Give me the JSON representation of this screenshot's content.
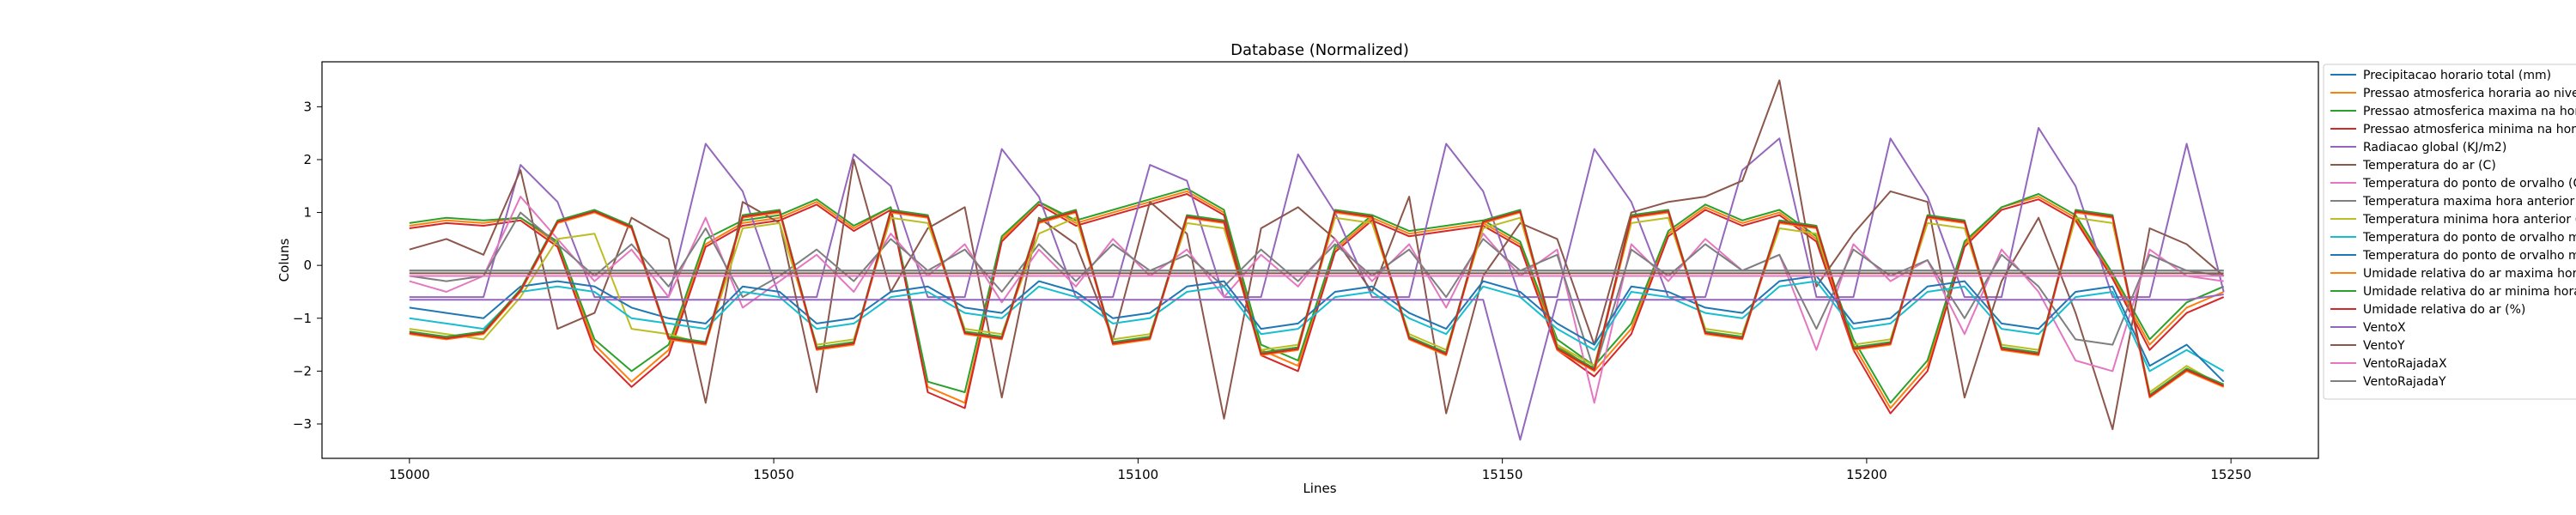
{
  "chart_data": {
    "type": "line",
    "title": "Database (Normalized)",
    "xlabel": "Lines",
    "ylabel": "Coluns",
    "xlim": [
      14988,
      15262
    ],
    "ylim": [
      -3.65,
      3.85
    ],
    "xticks": [
      15000,
      15050,
      15100,
      15150,
      15200,
      15250
    ],
    "yticks": [
      -3,
      -2,
      -1,
      0,
      1,
      2,
      3
    ],
    "grid": false,
    "legend_position": "right, upper",
    "x_start": 15000,
    "x_end": 15249,
    "series": [
      {
        "name": "Precipitacao horario total (mm)",
        "color": "#1f77b4",
        "values": [
          -0.1,
          -0.1,
          -0.1,
          -0.1,
          -0.1,
          -0.1,
          -0.1,
          -0.1,
          -0.1,
          -0.1,
          -0.1,
          -0.1,
          -0.1,
          -0.1,
          -0.1,
          -0.1,
          -0.1,
          -0.1,
          -0.1,
          -0.1,
          -0.1,
          -0.1,
          -0.1,
          -0.1,
          -0.1,
          -0.1,
          -0.1,
          -0.1,
          -0.1,
          -0.1,
          -0.1,
          -0.1,
          -0.1,
          -0.1,
          -0.1,
          -0.1,
          -0.1,
          -0.1,
          -0.1,
          -0.1,
          -0.1,
          -0.1,
          -0.1,
          -0.1,
          -0.1,
          -0.1,
          -0.1,
          -0.1,
          -0.1,
          -0.1
        ]
      },
      {
        "name": "Pressao atmosferica horaria ao nivel da estacao (mB)",
        "color": "#ff7f0e",
        "values": [
          0.75,
          0.85,
          0.8,
          0.9,
          0.4,
          -1.5,
          -2.2,
          -1.6,
          0.4,
          0.8,
          0.9,
          1.2,
          0.7,
          1.1,
          -2.3,
          -2.6,
          0.5,
          1.2,
          0.8,
          1.0,
          1.2,
          1.4,
          1.0,
          -1.6,
          -1.9,
          0.3,
          0.9,
          0.6,
          0.7,
          0.8,
          0.4,
          -1.5,
          -2.0,
          -1.2,
          0.6,
          1.1,
          0.8,
          1.0,
          0.5,
          -1.5,
          -2.7,
          -1.9,
          0.4,
          1.1,
          1.3,
          0.9,
          -0.2,
          -1.5,
          -0.8,
          -0.5
        ]
      },
      {
        "name": "Pressao atmosferica maxima na hora anterior (mB)",
        "color": "#2ca02c",
        "values": [
          0.8,
          0.9,
          0.85,
          0.9,
          0.45,
          -1.4,
          -2.0,
          -1.5,
          0.5,
          0.85,
          0.95,
          1.25,
          0.75,
          1.1,
          -2.2,
          -2.4,
          0.55,
          1.2,
          0.85,
          1.05,
          1.25,
          1.45,
          1.05,
          -1.5,
          -1.8,
          0.35,
          0.95,
          0.65,
          0.75,
          0.85,
          0.45,
          -1.4,
          -1.9,
          -1.1,
          0.65,
          1.15,
          0.85,
          1.05,
          0.55,
          -1.4,
          -2.6,
          -1.8,
          0.45,
          1.1,
          1.35,
          0.95,
          -0.15,
          -1.4,
          -0.7,
          -0.4
        ]
      },
      {
        "name": "Pressao atmosferica minima na hora anterior (mB)",
        "color": "#d62728",
        "values": [
          0.7,
          0.8,
          0.75,
          0.85,
          0.35,
          -1.6,
          -2.3,
          -1.7,
          0.35,
          0.75,
          0.85,
          1.15,
          0.65,
          1.05,
          -2.4,
          -2.7,
          0.45,
          1.15,
          0.75,
          0.95,
          1.15,
          1.35,
          0.95,
          -1.7,
          -2.0,
          0.25,
          0.85,
          0.55,
          0.65,
          0.75,
          0.35,
          -1.6,
          -2.1,
          -1.3,
          0.55,
          1.05,
          0.75,
          0.95,
          0.45,
          -1.6,
          -2.8,
          -2.0,
          0.35,
          1.05,
          1.25,
          0.85,
          -0.25,
          -1.6,
          -0.9,
          -0.6
        ]
      },
      {
        "name": "Radiacao global (KJ/m2)",
        "color": "#9467bd",
        "values": [
          -0.6,
          -0.6,
          -0.6,
          1.9,
          1.2,
          -0.6,
          -0.6,
          -0.6,
          2.3,
          1.4,
          -0.6,
          -0.6,
          2.1,
          1.5,
          -0.6,
          -0.6,
          2.2,
          1.3,
          -0.6,
          -0.6,
          1.9,
          1.6,
          -0.6,
          -0.6,
          2.1,
          1.0,
          -0.6,
          -0.6,
          2.3,
          1.4,
          -0.6,
          -0.6,
          2.2,
          1.2,
          -0.6,
          -0.6,
          1.8,
          2.4,
          -0.6,
          -0.6,
          2.4,
          1.3,
          -0.6,
          -0.6,
          2.6,
          1.5,
          -0.6,
          -0.6,
          2.3,
          -0.5
        ]
      },
      {
        "name": "Temperatura do ar (C)",
        "color": "#8c564b",
        "values": [
          0.3,
          0.5,
          0.2,
          1.8,
          -1.2,
          -0.9,
          0.9,
          0.5,
          -2.6,
          1.2,
          0.8,
          -2.4,
          2.0,
          -0.5,
          0.7,
          1.1,
          -2.5,
          0.9,
          0.4,
          -1.4,
          1.2,
          0.6,
          -2.9,
          0.7,
          1.1,
          0.5,
          -0.5,
          1.3,
          -2.8,
          -0.2,
          0.8,
          0.5,
          -1.5,
          1.0,
          1.2,
          1.3,
          1.6,
          3.5,
          -0.4,
          0.6,
          1.4,
          1.2,
          -2.5,
          -0.3,
          0.9,
          -0.9,
          -3.1,
          0.7,
          0.4,
          -0.2
        ]
      },
      {
        "name": "Temperatura do ponto de orvalho (C)",
        "color": "#e377c2",
        "values": [
          -0.3,
          -0.5,
          -0.2,
          1.3,
          0.5,
          -0.3,
          0.3,
          -0.6,
          0.9,
          -0.8,
          -0.3,
          0.2,
          -0.5,
          0.6,
          -0.2,
          0.4,
          -0.7,
          0.3,
          -0.4,
          0.5,
          -0.2,
          0.3,
          -0.6,
          0.2,
          -0.4,
          0.5,
          -0.3,
          0.4,
          -0.8,
          0.6,
          -0.2,
          0.3,
          -2.6,
          0.4,
          -0.3,
          0.5,
          -0.1,
          0.2,
          -1.6,
          0.4,
          -0.3,
          0.1,
          -1.3,
          0.3,
          -0.5,
          -1.8,
          -2.0,
          0.3,
          -0.2,
          -0.3
        ]
      },
      {
        "name": "Temperatura maxima hora anterior (C)",
        "color": "#7f7f7f",
        "values": [
          -0.2,
          -0.3,
          -0.2,
          1.0,
          0.4,
          -0.2,
          0.4,
          -0.4,
          0.7,
          -0.6,
          -0.2,
          0.3,
          -0.3,
          0.5,
          -0.1,
          0.3,
          -0.5,
          0.4,
          -0.3,
          0.4,
          -0.1,
          0.2,
          -0.4,
          0.3,
          -0.3,
          0.4,
          -0.2,
          0.3,
          -0.6,
          0.5,
          -0.1,
          0.2,
          -2.0,
          0.3,
          -0.2,
          0.4,
          -0.1,
          0.2,
          -1.2,
          0.3,
          -0.2,
          0.1,
          -1.0,
          0.2,
          -0.4,
          -1.4,
          -1.5,
          0.2,
          -0.1,
          -0.2
        ]
      },
      {
        "name": "Temperatura minima hora anterior (C)",
        "color": "#bcbd22",
        "values": [
          -1.2,
          -1.3,
          -1.4,
          -0.6,
          0.5,
          0.6,
          -1.2,
          -1.3,
          -1.5,
          0.7,
          0.8,
          -1.5,
          -1.4,
          0.9,
          0.8,
          -1.2,
          -1.3,
          0.6,
          0.9,
          -1.4,
          -1.3,
          0.8,
          0.7,
          -1.6,
          -1.5,
          0.9,
          0.8,
          -1.3,
          -1.6,
          0.7,
          0.9,
          -1.5,
          -1.9,
          0.8,
          0.9,
          -1.2,
          -1.3,
          0.7,
          0.6,
          -1.5,
          -1.4,
          0.8,
          0.7,
          -1.5,
          -1.6,
          0.9,
          0.8,
          -2.4,
          -1.9,
          -2.3
        ]
      },
      {
        "name": "Temperatura do ponto de orvalho maxima na hora anterior (C)",
        "color": "#17becf",
        "values": [
          -1.0,
          -1.1,
          -1.2,
          -0.5,
          -0.4,
          -0.5,
          -1.0,
          -1.1,
          -1.2,
          -0.5,
          -0.6,
          -1.2,
          -1.1,
          -0.6,
          -0.5,
          -0.9,
          -1.0,
          -0.4,
          -0.6,
          -1.1,
          -1.0,
          -0.5,
          -0.4,
          -1.3,
          -1.2,
          -0.6,
          -0.5,
          -1.0,
          -1.3,
          -0.4,
          -0.6,
          -1.2,
          -1.6,
          -0.5,
          -0.6,
          -0.9,
          -1.0,
          -0.4,
          -0.3,
          -1.2,
          -1.1,
          -0.5,
          -0.4,
          -1.2,
          -1.3,
          -0.6,
          -0.5,
          -2.0,
          -1.6,
          -2.0
        ]
      },
      {
        "name": "Temperatura do ponto de orvalho minima na hora anterior (C)",
        "color": "#1f77b4",
        "values": [
          -0.8,
          -0.9,
          -1.0,
          -0.4,
          -0.3,
          -0.4,
          -0.8,
          -1.0,
          -1.1,
          -0.4,
          -0.5,
          -1.1,
          -1.0,
          -0.5,
          -0.4,
          -0.8,
          -0.9,
          -0.3,
          -0.5,
          -1.0,
          -0.9,
          -0.4,
          -0.3,
          -1.2,
          -1.1,
          -0.5,
          -0.4,
          -0.9,
          -1.2,
          -0.3,
          -0.5,
          -1.1,
          -1.5,
          -0.4,
          -0.5,
          -0.8,
          -0.9,
          -0.3,
          -0.2,
          -1.1,
          -1.0,
          -0.4,
          -0.3,
          -1.1,
          -1.2,
          -0.5,
          -0.4,
          -1.9,
          -1.5,
          -2.2
        ]
      },
      {
        "name": "Umidade relativa do ar maxima hora anterior (%)",
        "color": "#ff7f0e",
        "values": [
          -1.3,
          -1.4,
          -1.3,
          -0.5,
          0.8,
          1.0,
          0.7,
          -1.4,
          -1.5,
          0.9,
          1.0,
          -1.6,
          -1.5,
          1.0,
          0.9,
          -1.3,
          -1.4,
          0.8,
          1.0,
          -1.5,
          -1.4,
          0.9,
          0.8,
          -1.7,
          -1.6,
          1.0,
          0.9,
          -1.4,
          -1.7,
          0.8,
          1.0,
          -1.6,
          -2.0,
          0.9,
          1.0,
          -1.3,
          -1.4,
          0.8,
          0.7,
          -1.6,
          -1.5,
          0.9,
          0.8,
          -1.6,
          -1.7,
          1.0,
          0.9,
          -2.5,
          -2.0,
          -2.3
        ]
      },
      {
        "name": "Umidade relativa do ar minima hora anterior (%)",
        "color": "#2ca02c",
        "values": [
          -1.25,
          -1.35,
          -1.25,
          -0.45,
          0.85,
          1.05,
          0.75,
          -1.35,
          -1.45,
          0.95,
          1.05,
          -1.55,
          -1.45,
          1.05,
          0.95,
          -1.25,
          -1.35,
          0.85,
          1.05,
          -1.45,
          -1.35,
          0.95,
          0.85,
          -1.65,
          -1.55,
          1.05,
          0.95,
          -1.35,
          -1.65,
          0.85,
          1.05,
          -1.55,
          -1.95,
          0.95,
          1.05,
          -1.25,
          -1.35,
          0.85,
          0.75,
          -1.55,
          -1.45,
          0.95,
          0.85,
          -1.55,
          -1.65,
          1.05,
          0.95,
          -2.45,
          -1.95,
          -2.25
        ]
      },
      {
        "name": "Umidade relativa do ar (%)",
        "color": "#d62728",
        "values": [
          -1.28,
          -1.38,
          -1.28,
          -0.48,
          0.82,
          1.02,
          0.72,
          -1.38,
          -1.48,
          0.92,
          1.02,
          -1.58,
          -1.48,
          1.02,
          0.92,
          -1.28,
          -1.38,
          0.82,
          1.02,
          -1.48,
          -1.38,
          0.92,
          0.82,
          -1.68,
          -1.58,
          1.02,
          0.92,
          -1.38,
          -1.68,
          0.82,
          1.02,
          -1.58,
          -1.98,
          0.92,
          1.02,
          -1.28,
          -1.38,
          0.82,
          0.72,
          -1.58,
          -1.48,
          0.92,
          0.82,
          -1.58,
          -1.68,
          1.02,
          0.92,
          -2.48,
          -1.98,
          -2.28
        ]
      },
      {
        "name": "VentoX",
        "color": "#9467bd",
        "values": [
          -0.65,
          -0.65,
          -0.65,
          -0.65,
          -0.65,
          -0.65,
          -0.65,
          -0.65,
          -0.65,
          -0.65,
          -0.65,
          -0.65,
          -0.65,
          -0.65,
          -0.65,
          -0.65,
          -0.65,
          -0.65,
          -0.65,
          -0.65,
          -0.65,
          -0.65,
          -0.65,
          -0.65,
          -0.65,
          -0.65,
          -0.65,
          -0.65,
          -0.65,
          -0.65,
          -3.3,
          -0.65,
          -0.65,
          -0.65,
          -0.65,
          -0.65,
          -0.65,
          -0.65,
          -0.65,
          -0.65,
          -0.65,
          -0.65,
          -0.65,
          -0.65,
          -0.65,
          -0.65,
          -0.65,
          -0.65,
          -0.65,
          -0.55
        ]
      },
      {
        "name": "VentoY",
        "color": "#8c564b",
        "values": [
          -0.15,
          -0.15,
          -0.15,
          -0.15,
          -0.15,
          -0.15,
          -0.15,
          -0.15,
          -0.15,
          -0.15,
          -0.15,
          -0.15,
          -0.15,
          -0.15,
          -0.15,
          -0.15,
          -0.15,
          -0.15,
          -0.15,
          -0.15,
          -0.15,
          -0.15,
          -0.15,
          -0.15,
          -0.15,
          -0.15,
          -0.15,
          -0.15,
          -0.15,
          -0.15,
          -0.15,
          -0.15,
          -0.15,
          -0.15,
          -0.15,
          -0.15,
          -0.15,
          -0.15,
          -0.15,
          -0.15,
          -0.15,
          -0.15,
          -0.15,
          -0.15,
          -0.15,
          -0.15,
          -0.15,
          -0.15,
          -0.15,
          -0.15
        ]
      },
      {
        "name": "VentoRajadaX",
        "color": "#e377c2",
        "values": [
          -0.2,
          -0.2,
          -0.2,
          -0.2,
          -0.2,
          -0.2,
          -0.2,
          -0.2,
          -0.2,
          -0.2,
          -0.2,
          -0.2,
          -0.2,
          -0.2,
          -0.2,
          -0.2,
          -0.2,
          -0.2,
          -0.2,
          -0.2,
          -0.2,
          -0.2,
          -0.2,
          -0.2,
          -0.2,
          -0.2,
          -0.2,
          -0.2,
          -0.2,
          -0.2,
          -0.2,
          -0.2,
          -0.2,
          -0.2,
          -0.2,
          -0.2,
          -0.2,
          -0.2,
          -0.2,
          -0.2,
          -0.2,
          -0.2,
          -0.2,
          -0.2,
          -0.2,
          -0.2,
          -0.2,
          -0.2,
          -0.2,
          -0.2
        ]
      },
      {
        "name": "VentoRajadaY",
        "color": "#7f7f7f",
        "values": [
          -0.1,
          -0.1,
          -0.1,
          -0.1,
          -0.1,
          -0.1,
          -0.1,
          -0.1,
          -0.1,
          -0.1,
          -0.1,
          -0.1,
          -0.1,
          -0.1,
          -0.1,
          -0.1,
          -0.1,
          -0.1,
          -0.1,
          -0.1,
          -0.1,
          -0.1,
          -0.1,
          -0.1,
          -0.1,
          -0.1,
          -0.1,
          -0.1,
          -0.1,
          -0.1,
          -0.1,
          -0.1,
          -0.1,
          -0.1,
          -0.1,
          -0.1,
          -0.1,
          -0.1,
          -0.1,
          -0.1,
          -0.1,
          -0.1,
          -0.1,
          -0.1,
          -0.1,
          -0.1,
          -0.1,
          -0.1,
          -0.1,
          -0.1
        ]
      }
    ]
  }
}
